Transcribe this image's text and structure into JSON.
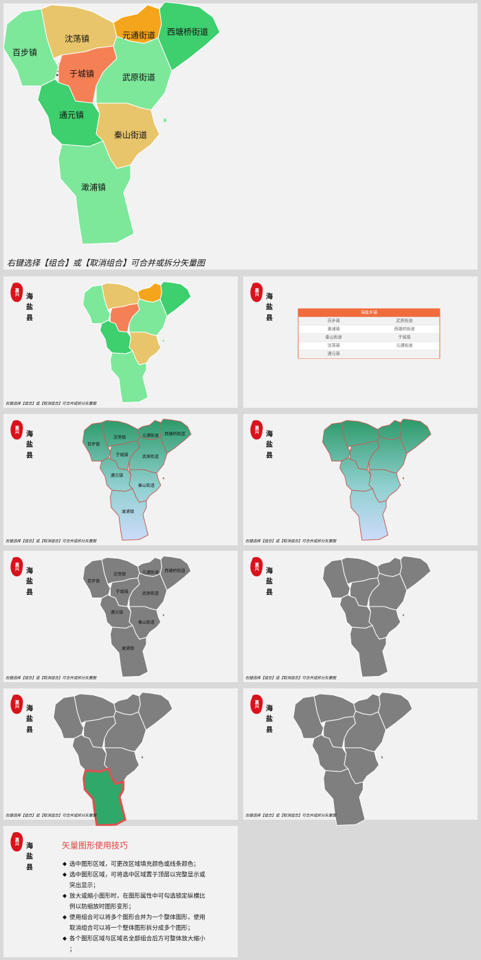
{
  "logo": "嘉兴",
  "county": [
    "海",
    "盐",
    "县"
  ],
  "regions": [
    "沈荡镇",
    "元通街道",
    "西塘桥街道",
    "百步镇",
    "于城镇",
    "武原街道",
    "通元镇",
    "秦山街道",
    "澉浦镇"
  ],
  "caption": "右键选择【组合】或【取消组合】可合并或拆分矢量图",
  "table": {
    "title": "海盐乡镇",
    "rows": [
      [
        "百步镇",
        "武原街道"
      ],
      [
        "澉浦镇",
        "西塘桥街道"
      ],
      [
        "秦山街道",
        "于城镇"
      ],
      [
        "沈荡镇",
        "元通街道"
      ],
      [
        "通元镇"
      ]
    ]
  },
  "tips": {
    "title": "矢量图形使用技巧",
    "bullet": "◆",
    "items": [
      "选中图形区域，可更改区域填充颜色或线条颜色；",
      "选中图形区域，可将选中区域置于顶层以完整显示或突出显示；",
      "放大或缩小图形时，在图形属性中可勾选锁定纵横比例以防缩放时图形变形；",
      "使用组合可以将多个图形合并为一个整体图形，使用取消组合可以将一个整体图形拆分成多个图形；",
      "各个图形区域与区域名全部组合后方可整体放大缩小；"
    ]
  }
}
